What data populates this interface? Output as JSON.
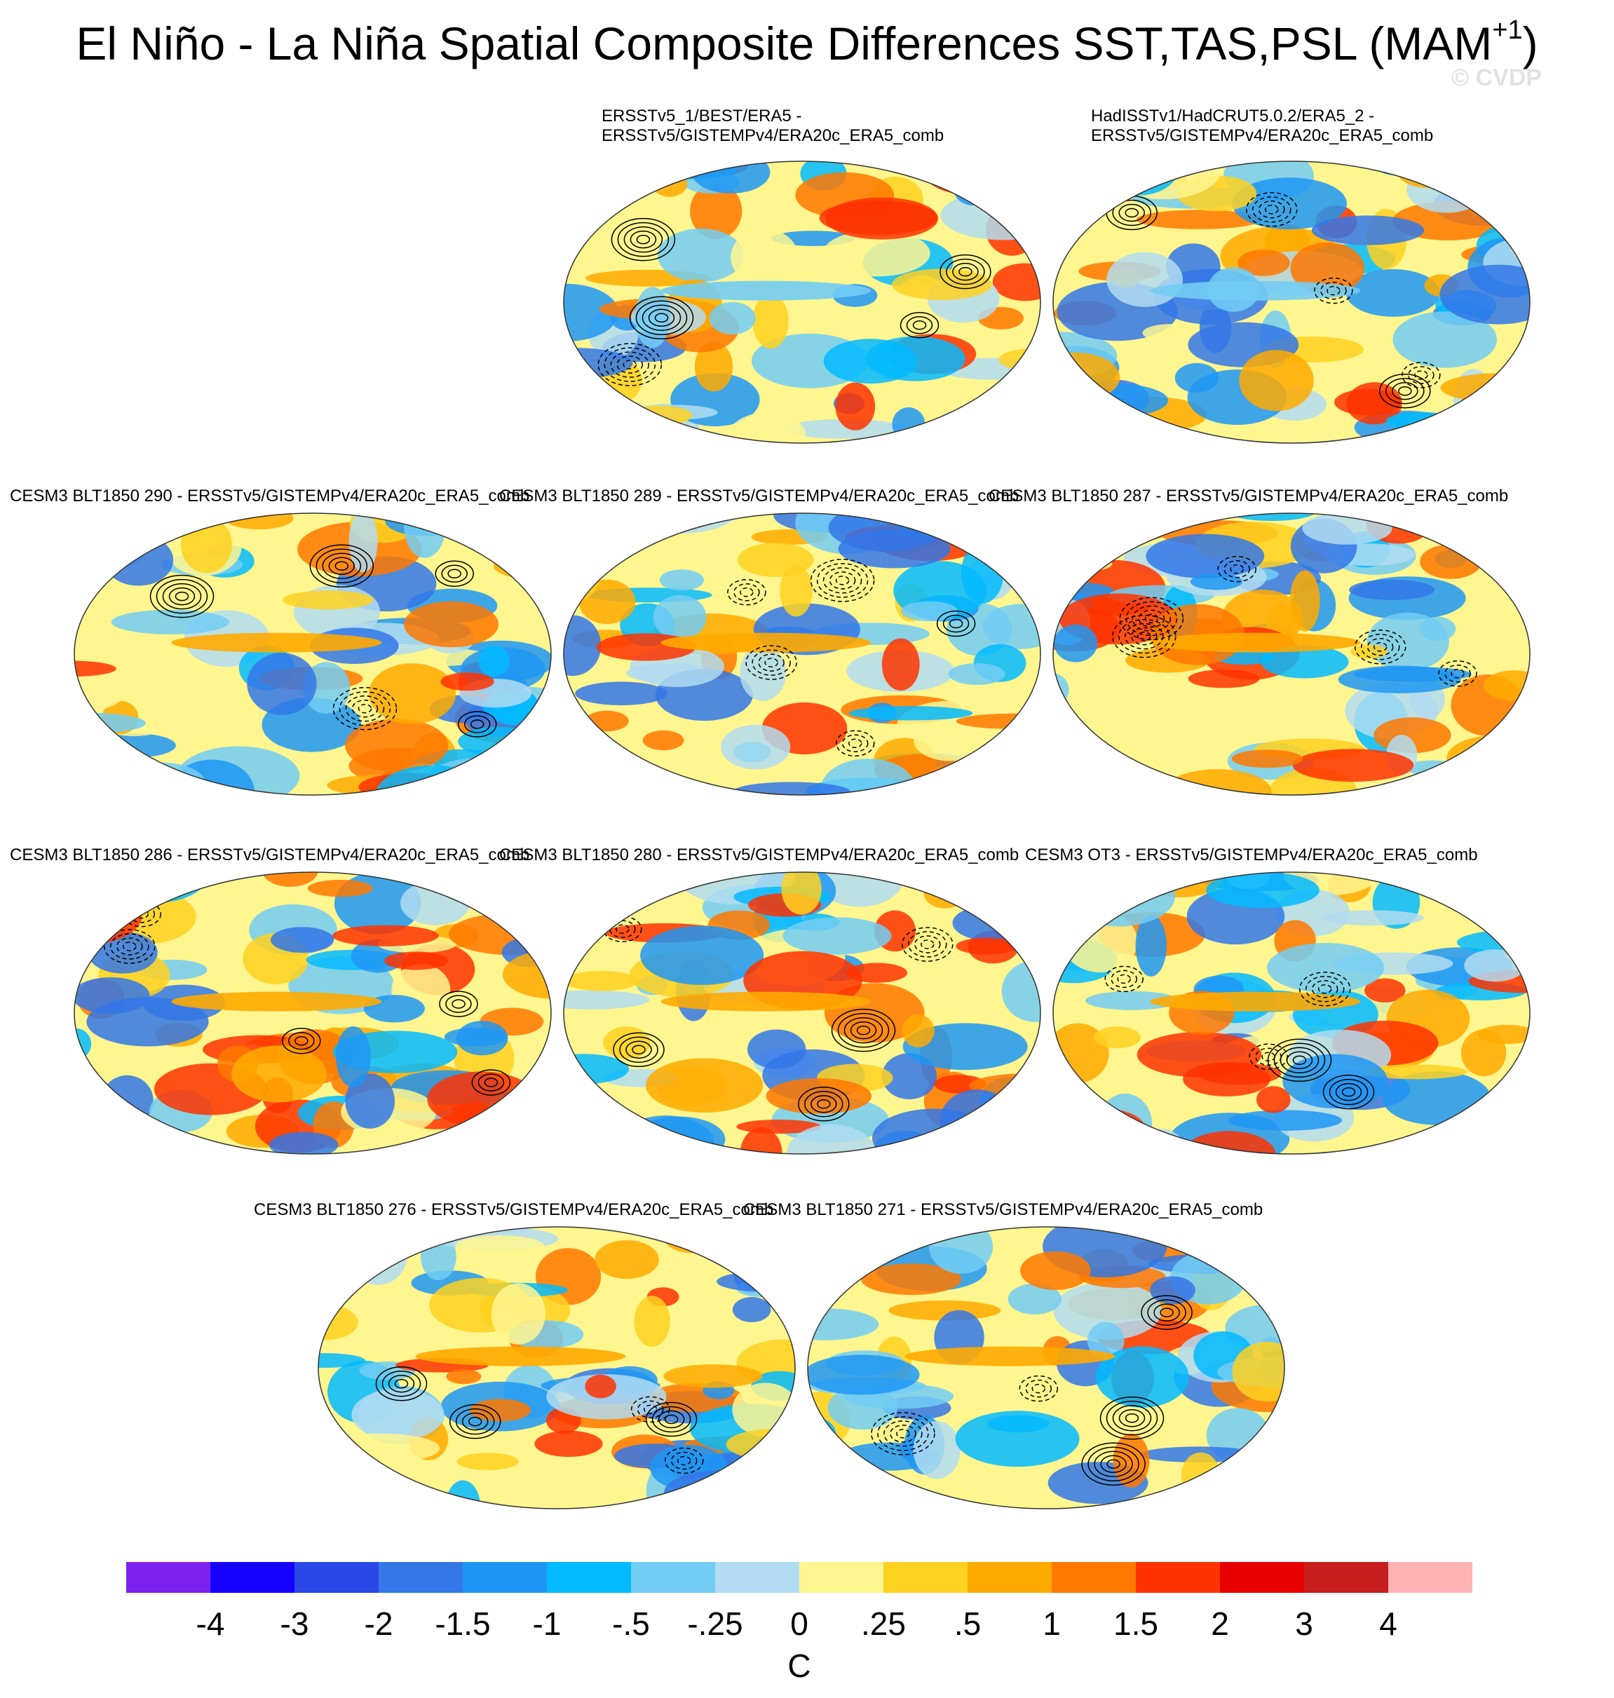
{
  "figure": {
    "title": "El Niño - La Niña Spatial Composite Differences SST,TAS,PSL (MAM",
    "title_superscript": "+1",
    "title_close": ")",
    "watermark": "© CVDP"
  },
  "panels": [
    {
      "label": "ERSSTv5_1/BEST/ERA5 -\nERSSTv5/GISTEMPv4/ERA20c_ERA5_comb"
    },
    {
      "label": "HadISSTv1/HadCRUT5.0.2/ERA5_2 -\nERSSTv5/GISTEMPv4/ERA20c_ERA5_comb"
    },
    {
      "label": "CESM3 BLT1850 290 - ERSSTv5/GISTEMPv4/ERA20c_ERA5_comb"
    },
    {
      "label": "CESM3 BLT1850 289 - ERSSTv5/GISTEMPv4/ERA20c_ERA5_comb"
    },
    {
      "label": "CESM3 BLT1850 287 - ERSSTv5/GISTEMPv4/ERA20c_ERA5_comb"
    },
    {
      "label": "CESM3 BLT1850 286 - ERSSTv5/GISTEMPv4/ERA20c_ERA5_comb"
    },
    {
      "label": "CESM3 BLT1850 280 - ERSSTv5/GISTEMPv4/ERA20c_ERA5_comb"
    },
    {
      "label": "CESM3 OT3 - ERSSTv5/GISTEMPv4/ERA20c_ERA5_comb"
    },
    {
      "label": "CESM3 BLT1850 276 - ERSSTv5/GISTEMPv4/ERA20c_ERA5_comb"
    },
    {
      "label": "CESM3 BLT1850 271 - ERSSTv5/GISTEMPv4/ERA20c_ERA5_comb"
    }
  ],
  "colorbar": {
    "units": "C",
    "tick_labels": [
      "-4",
      "-3",
      "-2",
      "-1.5",
      "-1",
      "-.5",
      "-.25",
      "0",
      ".25",
      ".5",
      "1",
      "1.5",
      "2",
      "3",
      "4"
    ],
    "colors": [
      "#7c21f0",
      "#1600ff",
      "#2a48e6",
      "#3377e8",
      "#1f96f5",
      "#02baff",
      "#72ccf4",
      "#b1dcf1",
      "#fff68f",
      "#ffd120",
      "#ffaa00",
      "#ff7800",
      "#ff3300",
      "#e80000",
      "#c91e1e",
      "#ffb3b3"
    ]
  }
}
